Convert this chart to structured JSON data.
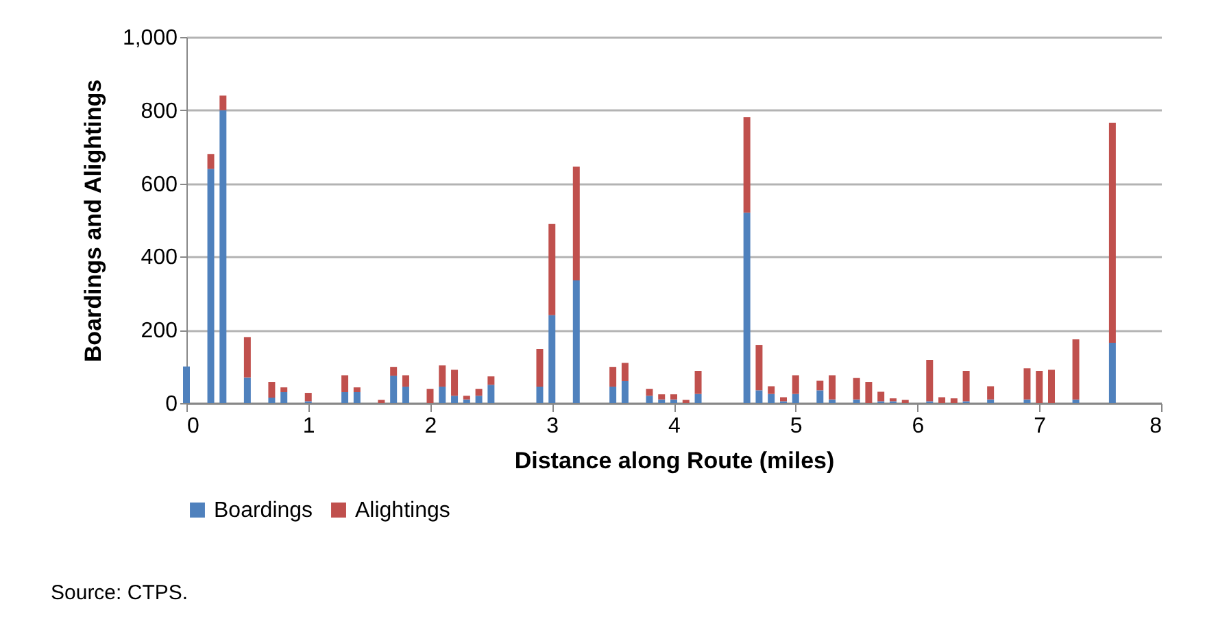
{
  "chart_data": {
    "type": "bar",
    "stacked": true,
    "xlabel": "Distance along Route (miles)",
    "ylabel": "Boardings and Alightings",
    "x": [
      0.0,
      0.2,
      0.3,
      0.5,
      0.7,
      0.8,
      1.0,
      1.3,
      1.4,
      1.6,
      1.7,
      1.8,
      2.0,
      2.1,
      2.2,
      2.3,
      2.4,
      2.5,
      2.9,
      3.0,
      3.2,
      3.5,
      3.6,
      3.8,
      3.9,
      4.0,
      4.1,
      4.2,
      4.6,
      4.7,
      4.8,
      4.9,
      5.0,
      5.2,
      5.3,
      5.5,
      5.6,
      5.7,
      5.8,
      5.9,
      6.1,
      6.2,
      6.3,
      6.4,
      6.6,
      6.9,
      7.0,
      7.1,
      7.3,
      7.6
    ],
    "series": [
      {
        "name": "Boardings",
        "color": "#4f81bd",
        "values": [
          100,
          640,
          800,
          70,
          15,
          30,
          5,
          30,
          30,
          0,
          75,
          45,
          0,
          45,
          20,
          10,
          20,
          50,
          45,
          240,
          335,
          45,
          60,
          20,
          10,
          10,
          0,
          25,
          520,
          35,
          25,
          5,
          25,
          35,
          10,
          10,
          0,
          5,
          5,
          0,
          5,
          0,
          0,
          5,
          10,
          10,
          0,
          0,
          10,
          165
        ]
      },
      {
        "name": "Alightings",
        "color": "#c0504d",
        "values": [
          0,
          40,
          40,
          110,
          43,
          13,
          23,
          46,
          13,
          9,
          24,
          31,
          39,
          58,
          71,
          10,
          19,
          23,
          103,
          249,
          311,
          54,
          50,
          19,
          14,
          14,
          9,
          63,
          261,
          124,
          21,
          11,
          51,
          26,
          66,
          59,
          58,
          26,
          8,
          9,
          113,
          16,
          13,
          83,
          36,
          85,
          88,
          91,
          164,
          601
        ]
      }
    ],
    "xlim": [
      0,
      8
    ],
    "xticks": [
      0,
      1,
      2,
      3,
      4,
      5,
      6,
      7,
      8
    ],
    "ylim": [
      0,
      1000
    ],
    "yticks": [
      0,
      200,
      400,
      600,
      800,
      {
        "value": 1000,
        "label": "1,000"
      }
    ],
    "grid": "y",
    "legend": "bottom",
    "annotations": [
      "Source: CTPS."
    ]
  }
}
